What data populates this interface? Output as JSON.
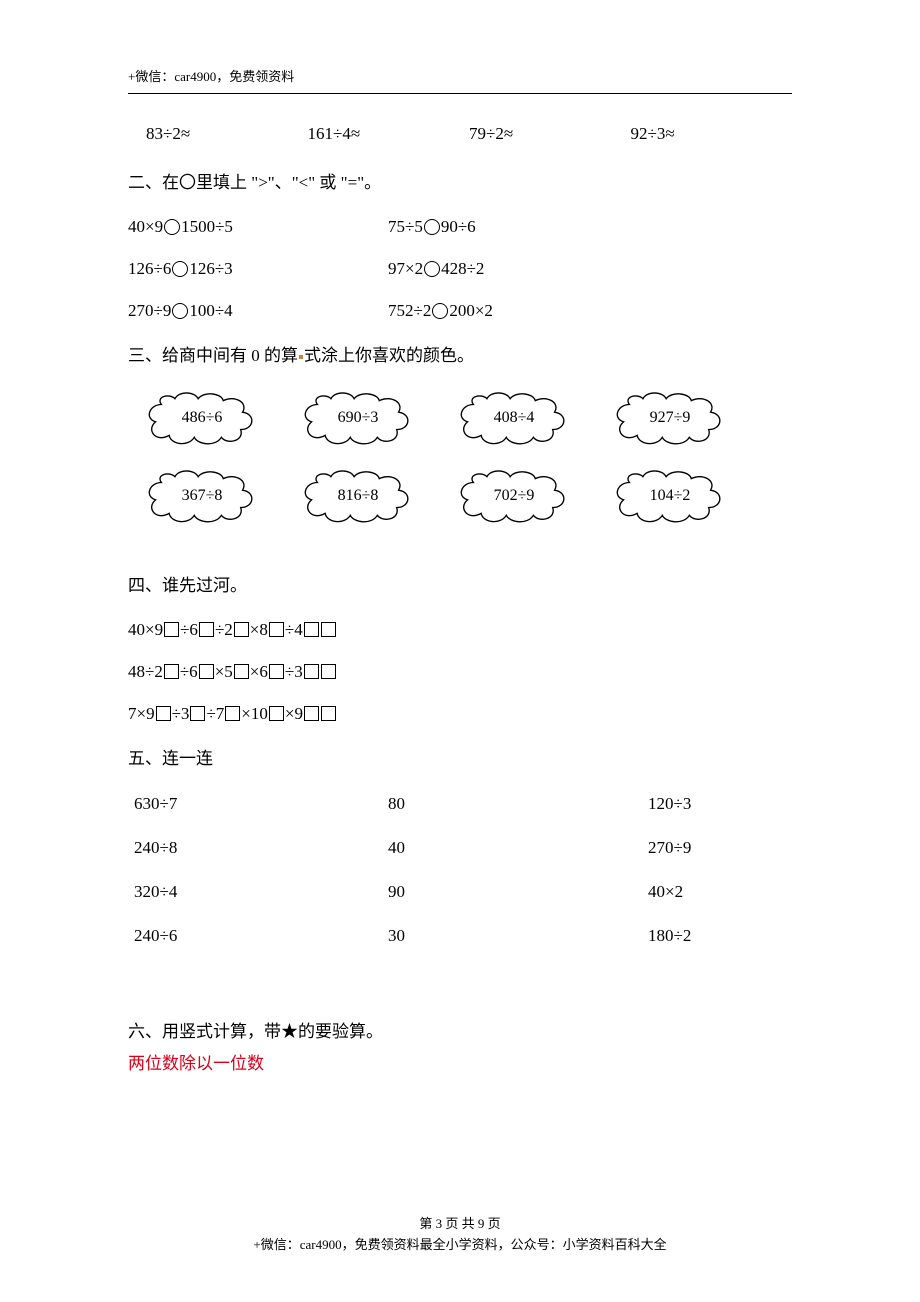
{
  "header": {
    "note": "+微信：car4900，免费领资料"
  },
  "section1": {
    "items": [
      "83÷2≈",
      "161÷4≈",
      "79÷2≈",
      "92÷3≈"
    ]
  },
  "section2": {
    "title": "二、在〇里填上 \">\"、\"<\" 或 \"=\"。",
    "rows": [
      {
        "left_a": "40×9",
        "left_b": "1500÷5",
        "right_a": "75÷5",
        "right_b": "90÷6"
      },
      {
        "left_a": "126÷6",
        "left_b": "126÷3",
        "right_a": "97×2",
        "right_b": "428÷2"
      },
      {
        "left_a": "270÷9",
        "left_b": "100÷4",
        "right_a": "752÷2",
        "right_b": "200×2"
      }
    ]
  },
  "section3": {
    "title_a": "三、给商中间有 0 的算",
    "title_b": "式涂上你喜欢的颜色。",
    "clouds": [
      [
        "486÷6",
        "690÷3",
        "408÷4",
        "927÷9"
      ],
      [
        "367÷8",
        "816÷8",
        "702÷9",
        "104÷2"
      ]
    ]
  },
  "section4": {
    "title": "四、谁先过河。",
    "lines": [
      [
        "40×9",
        "÷6",
        "÷2",
        "×8",
        "÷4",
        ""
      ],
      [
        "48÷2",
        "÷6",
        "×5",
        "×6",
        "÷3",
        ""
      ],
      [
        "7×9",
        "÷3",
        "÷7",
        "×10",
        "×9",
        ""
      ]
    ]
  },
  "section5": {
    "title": "五、连一连",
    "rows": [
      {
        "l": "630÷7",
        "m": "80",
        "r": "120÷3"
      },
      {
        "l": "240÷8",
        "m": "40",
        "r": "270÷9"
      },
      {
        "l": "320÷4",
        "m": "90",
        "r": "40×2"
      },
      {
        "l": "240÷6",
        "m": "30",
        "r": "180÷2"
      }
    ]
  },
  "section6": {
    "title": "六、用竖式计算，带★的要验算。",
    "subtitle": "两位数除以一位数"
  },
  "footer": {
    "page": "第 3 页 共 9 页",
    "line2": "+微信：car4900，免费领资料最全小学资料，公众号：小学资料百科大全"
  },
  "colors": {
    "text": "#000000",
    "red": "#d9001b",
    "dot": "#c2873e",
    "bg": "#ffffff"
  }
}
